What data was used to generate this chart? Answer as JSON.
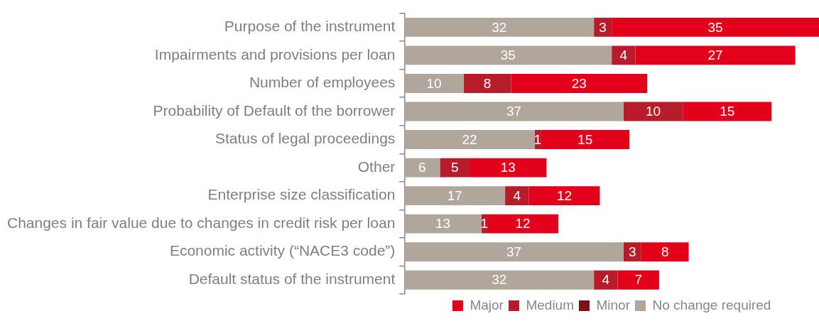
{
  "chart_data": {
    "type": "bar",
    "orientation": "horizontal",
    "stacked": true,
    "legend": "bottom",
    "categories": [
      "Purpose of the instrument",
      "Impairments and provisions per loan",
      "Number of employees",
      "Probability of Default of the borrower",
      "Status of legal proceedings",
      "Other",
      "Enterprise size classification",
      "Changes in fair value due to changes in credit risk per loan",
      "Economic activity (“NACE3 code”)",
      "Default status of the instrument"
    ],
    "series": [
      {
        "name": "No change required",
        "color": "#b1a69c",
        "values": [
          32,
          35,
          10,
          37,
          22,
          6,
          17,
          13,
          37,
          32
        ],
        "value_labels": [
          "32",
          "35",
          "10",
          "37",
          "22",
          "6",
          "17",
          "13",
          "37",
          "32"
        ]
      },
      {
        "name": "Minor",
        "color": "#7d0f17",
        "values": [
          0,
          0,
          0,
          0,
          0,
          0,
          0,
          0,
          0,
          0
        ],
        "value_labels": [
          null,
          null,
          null,
          null,
          null,
          null,
          null,
          null,
          null,
          null
        ]
      },
      {
        "name": "Medium",
        "color": "#b81c2a",
        "values": [
          3,
          4,
          8,
          10,
          1,
          5,
          4,
          1,
          3,
          4
        ],
        "value_labels": [
          "3",
          "4",
          "8",
          "10",
          "1",
          "5",
          "4",
          "1",
          "3",
          "4"
        ]
      },
      {
        "name": "Major",
        "color": "#e2001a",
        "values": [
          35,
          27,
          23,
          15,
          15,
          13,
          12,
          12,
          8,
          7
        ],
        "value_labels": [
          "35",
          "27",
          "23",
          "15",
          "15",
          "13",
          "12",
          "12",
          "8",
          "7"
        ]
      }
    ]
  }
}
